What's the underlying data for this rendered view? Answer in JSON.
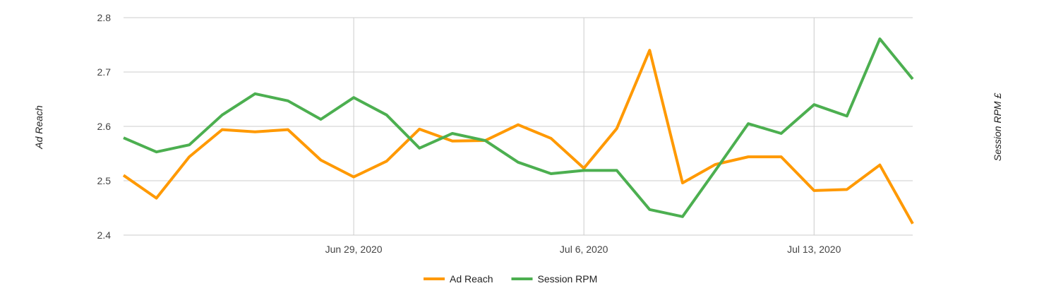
{
  "chart_data": {
    "type": "line",
    "ylabel": "Ad Reach",
    "ylabel_right": "Session RPM £",
    "ylim": [
      2.4,
      2.8
    ],
    "yticks": [
      "2.4",
      "2.5",
      "2.6",
      "2.7",
      "2.8"
    ],
    "x": [
      "Jun 22",
      "Jun 23",
      "Jun 24",
      "Jun 25",
      "Jun 26",
      "Jun 27",
      "Jun 28",
      "Jun 29",
      "Jun 30",
      "Jul 1",
      "Jul 2",
      "Jul 3",
      "Jul 4",
      "Jul 5",
      "Jul 6",
      "Jul 7",
      "Jul 8",
      "Jul 9",
      "Jul 10",
      "Jul 11",
      "Jul 12",
      "Jul 13",
      "Jul 14",
      "Jul 15",
      "Jul 16"
    ],
    "xtick_labels": [
      {
        "index": 7,
        "label": "Jun 29, 2020"
      },
      {
        "index": 14,
        "label": "Jul 6, 2020"
      },
      {
        "index": 21,
        "label": "Jul 13, 2020"
      }
    ],
    "grid": true,
    "legend_position": "bottom",
    "series": [
      {
        "name": "Ad Reach",
        "color": "#ff9900",
        "axis": "left",
        "values": [
          2.51,
          2.468,
          2.544,
          2.594,
          2.59,
          2.594,
          2.538,
          2.507,
          2.536,
          2.595,
          2.573,
          2.574,
          2.603,
          2.578,
          2.523,
          2.596,
          2.74,
          2.496,
          2.53,
          2.544,
          2.544,
          2.482,
          2.484,
          2.529,
          2.421
        ]
      },
      {
        "name": "Session RPM",
        "color": "#4caf50",
        "axis": "right",
        "values": [
          2.579,
          2.553,
          2.566,
          2.621,
          2.66,
          2.647,
          2.613,
          2.653,
          2.621,
          2.56,
          2.587,
          2.574,
          2.534,
          2.513,
          2.519,
          2.519,
          2.447,
          2.434,
          2.519,
          2.605,
          2.587,
          2.64,
          2.619,
          2.761,
          2.687
        ]
      }
    ]
  }
}
